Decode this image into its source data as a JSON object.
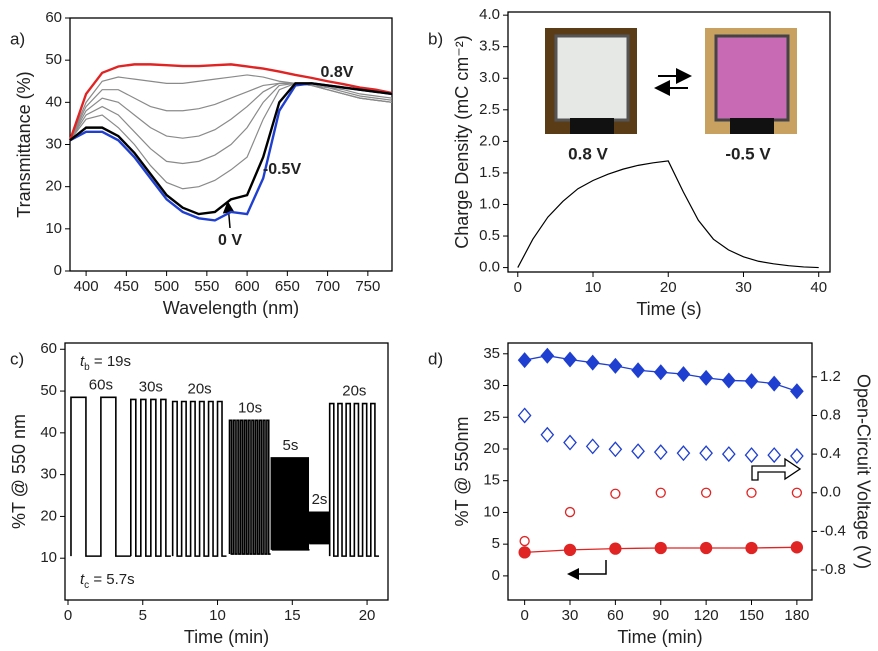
{
  "chart_data": [
    {
      "type": "line",
      "panel": "a)",
      "xlabel": "Wavelength (nm)",
      "ylabel": "Transmittance (%)",
      "xlim": [
        380,
        780
      ],
      "ylim": [
        0,
        60
      ],
      "xticks": [
        400,
        450,
        500,
        550,
        600,
        650,
        700,
        750
      ],
      "yticks": [
        0,
        10,
        20,
        30,
        40,
        50,
        60
      ],
      "x": [
        380,
        400,
        420,
        440,
        460,
        480,
        500,
        520,
        540,
        560,
        580,
        600,
        620,
        640,
        660,
        680,
        700,
        720,
        740,
        760,
        780
      ],
      "series": [
        {
          "color": "#8a8a8a",
          "values": [
            31,
            40,
            45,
            46,
            45.5,
            45,
            44.5,
            44.5,
            45,
            45.5,
            46,
            46.5,
            46,
            45,
            44.5,
            44,
            43.5,
            43,
            42,
            41.5,
            41
          ]
        },
        {
          "color": "#8a8a8a",
          "values": [
            31,
            39,
            43,
            43,
            41,
            39,
            38,
            38,
            38.5,
            39.5,
            41,
            42.5,
            44,
            44.5,
            44.5,
            44,
            43,
            42,
            41,
            40.5,
            40
          ]
        },
        {
          "color": "#8a8a8a",
          "values": [
            31,
            38,
            41,
            40,
            37,
            34,
            32,
            31.5,
            32,
            33.5,
            36,
            39,
            42.5,
            44.5,
            44.5,
            44,
            43,
            42,
            41,
            40.5,
            40
          ]
        },
        {
          "color": "#8a8a8a",
          "values": [
            31,
            37,
            39,
            37,
            33,
            29,
            26,
            25.5,
            26,
            27.5,
            30,
            34,
            40,
            44,
            44.5,
            44,
            43,
            42,
            41,
            40.5,
            40
          ]
        },
        {
          "color": "#8a8a8a",
          "values": [
            31,
            36,
            37,
            34,
            30,
            25,
            21,
            19.5,
            20,
            21.5,
            24,
            27,
            36,
            43,
            44.5,
            44,
            43.5,
            42.5,
            41.5,
            41,
            40.5
          ]
        },
        {
          "name": "0.8V",
          "color": "#e02424",
          "values": [
            31,
            42,
            47,
            48.5,
            49,
            49,
            48.8,
            48.6,
            48.6,
            48.8,
            49,
            48.5,
            48,
            47.3,
            46.5,
            45.8,
            45,
            44.3,
            43.5,
            43,
            42.2
          ]
        },
        {
          "name": "-0.5V",
          "color": "#1f3fd0",
          "values": [
            31,
            33,
            33,
            31,
            27,
            22,
            17,
            14,
            12.5,
            12,
            14,
            13.5,
            22,
            38,
            44,
            44.5,
            44,
            43.5,
            43,
            42.5,
            42
          ]
        },
        {
          "name": "0 V",
          "color": "#000000",
          "values": [
            31,
            34,
            34,
            32,
            28,
            23,
            18,
            15,
            13.5,
            14,
            17,
            18,
            27,
            40,
            44.5,
            44.5,
            44,
            43.5,
            43,
            42.5,
            42
          ]
        }
      ]
    },
    {
      "type": "line",
      "panel": "b)",
      "xlabel": "Time (s)",
      "ylabel": "Charge Density (mC cm⁻²)",
      "xlim": [
        -1.3,
        41.5
      ],
      "ylim": [
        -0.07,
        4.05
      ],
      "xticks": [
        0,
        10,
        20,
        30,
        40
      ],
      "yticks": [
        {
          "value": 0,
          "label": "0.0"
        },
        0.5,
        {
          "value": 1,
          "label": "1.0"
        },
        1.5,
        {
          "value": 2,
          "label": "2.0"
        },
        2.5,
        {
          "value": 3,
          "label": "3.0"
        },
        3.5,
        {
          "value": 4,
          "label": "4.0"
        }
      ],
      "annotations": [
        "0.8 V",
        "-0.5 V"
      ],
      "x": [
        0,
        2,
        4,
        6,
        8,
        10,
        12,
        14,
        16,
        18,
        20,
        22,
        24,
        26,
        28,
        30,
        32,
        34,
        36,
        38,
        40
      ],
      "series": [
        {
          "color": "#000000",
          "values": [
            0,
            0.45,
            0.8,
            1.05,
            1.25,
            1.38,
            1.48,
            1.56,
            1.62,
            1.66,
            1.69,
            1.2,
            0.75,
            0.45,
            0.28,
            0.17,
            0.1,
            0.06,
            0.03,
            0.01,
            0
          ]
        }
      ]
    },
    {
      "type": "square-wave",
      "panel": "c)",
      "xlabel": "Time (min)",
      "ylabel": "%T @ 550 nm",
      "xlim": [
        -0.2,
        21.4
      ],
      "ylim": [
        0,
        61.5
      ],
      "xticks": [
        0,
        5,
        10,
        15,
        20
      ],
      "yticks": [
        10,
        20,
        30,
        40,
        50,
        60
      ],
      "color": "#000000",
      "annotations": [
        {
          "symbol": "t",
          "subscript": "b",
          "text": " = 19s"
        },
        {
          "symbol": "t",
          "subscript": "c",
          "text": " = 5.7s"
        }
      ],
      "blocks": [
        {
          "label": "60s",
          "start": 0.2,
          "period": 2.0,
          "cycles": 2,
          "high": 48.5,
          "low": 10.5
        },
        {
          "label": "30s",
          "start": 4.2,
          "period": 0.67,
          "cycles": 4,
          "high": 48,
          "low": 10.5
        },
        {
          "label": "20s",
          "start": 7.0,
          "period": 0.6,
          "cycles": 6,
          "high": 47.5,
          "low": 10.5
        },
        {
          "label": "10s",
          "start": 10.8,
          "period": 0.25,
          "cycles": 11,
          "high": 43,
          "low": 11
        },
        {
          "label": "5s",
          "start": 13.6,
          "period": 0.17,
          "cycles": 15,
          "high": 34,
          "low": 12
        },
        {
          "label": "2s",
          "start": 16.15,
          "period": 0.067,
          "cycles": 20,
          "high": 21,
          "low": 13.5
        },
        {
          "label": "20s",
          "start": 17.5,
          "period": 0.55,
          "cycles": 6,
          "high": 47,
          "low": 10.5
        }
      ]
    },
    {
      "type": "scatter",
      "panel": "d)",
      "xlabel": "Time (min)",
      "ylabel": "%T @ 550nm",
      "y2label": "Open-Circuit Voltage (V)",
      "xlim": [
        -11,
        190
      ],
      "ylim": [
        -3.8,
        36.7
      ],
      "y2lim": [
        -1.11,
        1.55
      ],
      "xticks": [
        0,
        30,
        60,
        90,
        120,
        150,
        180
      ],
      "yticks": [
        0,
        5,
        10,
        15,
        20,
        25,
        30,
        35
      ],
      "y2ticks": [
        -0.8,
        -0.4,
        {
          "value": 0,
          "label": "0.0"
        },
        0.4,
        0.8,
        1.2
      ],
      "series": [
        {
          "color": "#1f3fd0",
          "marker": "diamond",
          "filled": true,
          "line": true,
          "x": [
            0,
            15,
            30,
            45,
            60,
            75,
            90,
            105,
            120,
            135,
            150,
            165,
            180
          ],
          "values": [
            34,
            34.7,
            34.1,
            33.6,
            33.1,
            32.4,
            32.1,
            31.8,
            31.2,
            30.8,
            30.7,
            30.3,
            29.1
          ]
        },
        {
          "color": "#1f3fd0",
          "marker": "diamond",
          "filled": false,
          "line": false,
          "axis": "y2",
          "x": [
            0,
            15,
            30,
            45,
            60,
            75,
            90,
            105,
            120,
            135,
            150,
            165,
            180
          ],
          "values": [
            0.8,
            0.6,
            0.52,
            0.48,
            0.45,
            0.43,
            0.42,
            0.41,
            0.41,
            0.4,
            0.39,
            0.39,
            0.38
          ]
        },
        {
          "color": "#e02424",
          "marker": "circle",
          "filled": true,
          "line": true,
          "x": [
            0,
            30,
            60,
            90,
            120,
            150,
            180
          ],
          "values": [
            3.7,
            4.1,
            4.3,
            4.4,
            4.4,
            4.4,
            4.5
          ]
        },
        {
          "color": "#e02424",
          "marker": "circle",
          "filled": false,
          "line": false,
          "axis": "y2",
          "x": [
            0,
            30,
            60,
            90,
            120,
            150,
            180
          ],
          "values": [
            -0.5,
            -0.2,
            -0.01,
            0,
            0,
            0,
            0
          ]
        }
      ]
    }
  ]
}
